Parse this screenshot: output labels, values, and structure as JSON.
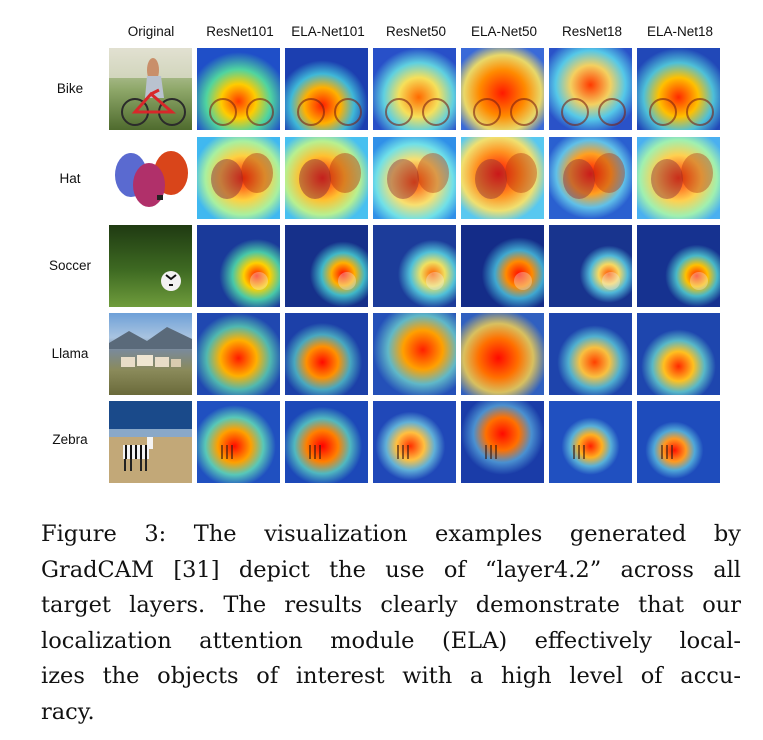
{
  "figure": {
    "columns": [
      "Original",
      "ResNet101",
      "ELA-Net101",
      "ResNet50",
      "ELA-Net50",
      "ResNet18",
      "ELA-Net18"
    ],
    "rows": [
      "Bike",
      "Hat",
      "Soccer",
      "Llama",
      "Zebra"
    ]
  },
  "caption": {
    "lines": [
      "Figure 3:  The visualization examples generated by",
      "GradCAM [31] depict the use of “layer4.2” across all",
      "target layers.  The results clearly demonstrate that our",
      "localization attention module (ELA) effectively local-",
      "izes the objects of interest with a high level of accu-",
      "racy."
    ]
  }
}
